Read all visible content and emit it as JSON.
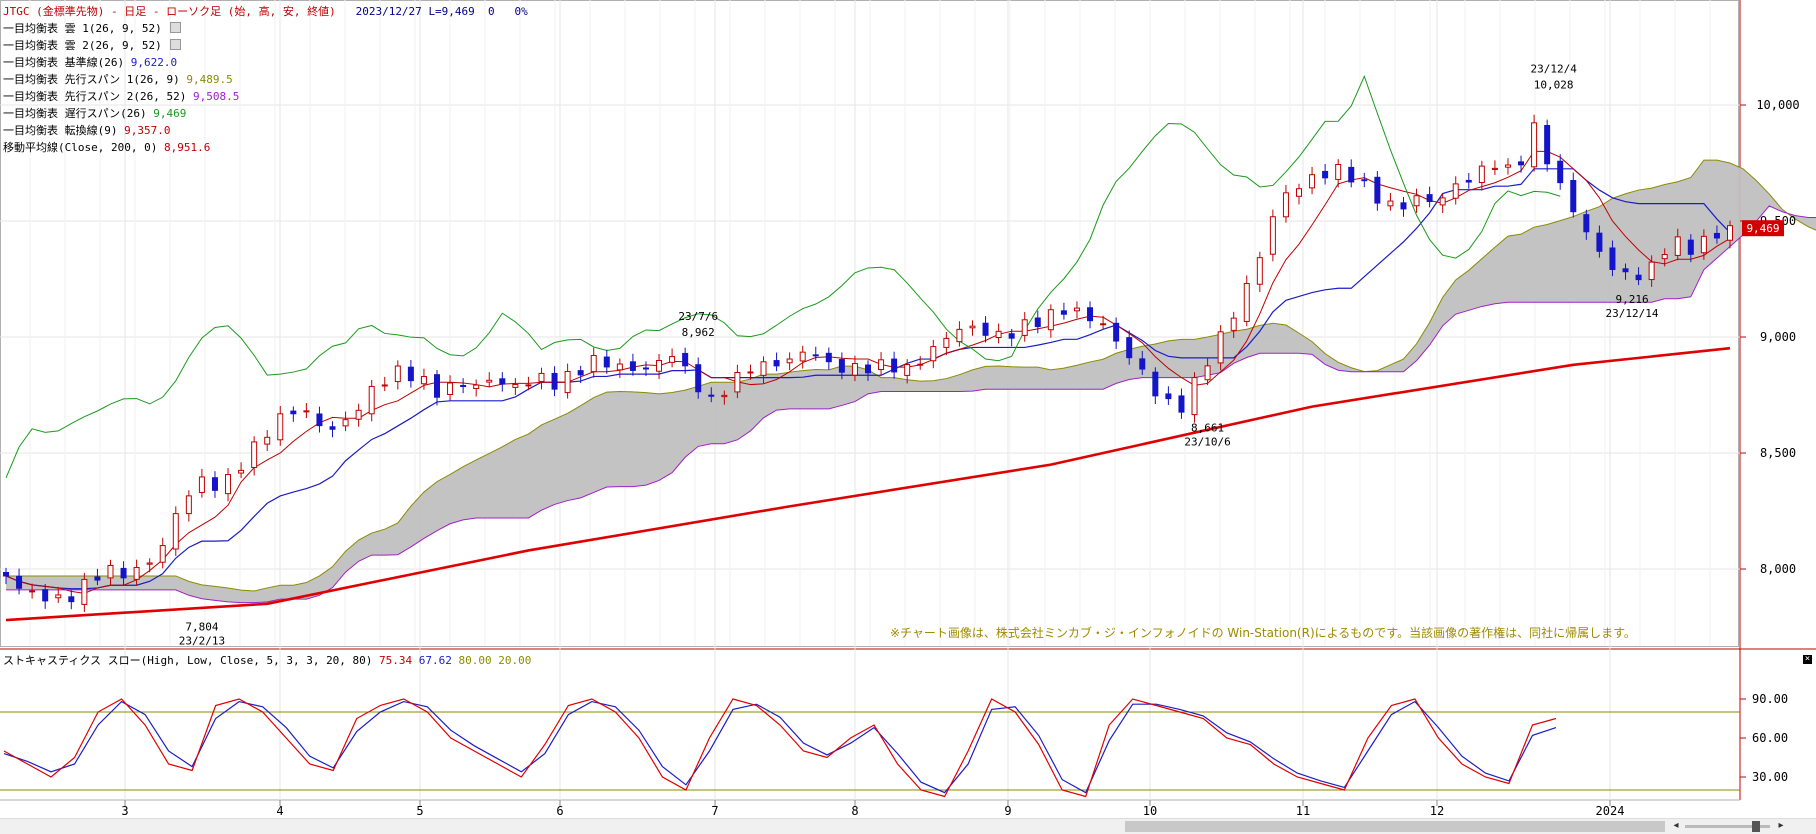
{
  "header": {
    "title": "JTGC (金標準先物) - 日足 - ローソク足 (始, 高, 安, 終値)",
    "date": "2023/12/27",
    "last": "L=9,469",
    "change": "0",
    "pct": "0%"
  },
  "legend": [
    {
      "label": "一目均衡表 雲 1(26, 9, 52)",
      "value": "",
      "chip": true,
      "color": "#000000"
    },
    {
      "label": "一目均衡表 雲 2(26, 9, 52)",
      "value": "",
      "chip": true,
      "color": "#000000"
    },
    {
      "label": "一目均衡表 基準線(26)",
      "value": "9,622.0",
      "chip": false,
      "color": "#1c1cc8"
    },
    {
      "label": "一目均衡表 先行スパン 1(26, 9)",
      "value": "9,489.5",
      "chip": false,
      "color": "#8b8b00"
    },
    {
      "label": "一目均衡表 先行スパン 2(26, 52)",
      "value": "9,508.5",
      "chip": false,
      "color": "#a020c8"
    },
    {
      "label": "一目均衡表 遅行スパン(26)",
      "value": "9,469",
      "chip": false,
      "color": "#1a9a1a"
    },
    {
      "label": "一目均衡表 転換線(9)",
      "value": "9,357.0",
      "chip": false,
      "color": "#c00000"
    },
    {
      "label": "移動平均線(Close, 200, 0)",
      "value": "8,951.6",
      "chip": false,
      "color": "#c00000"
    }
  ],
  "oscillator": {
    "title": "ストキャスティクス スロー(High, Low, Close, 5, 3, 3, 20, 80)",
    "k": "75.34",
    "d": "67.62",
    "upper": "80.00",
    "lower": "20.00",
    "yticks": [
      "90.00",
      "60.00",
      "30.00"
    ]
  },
  "note": "※チャート画像は、株式会社ミンカブ・ジ・インフォノイドの Win-Station(R)によるものです。当該画像の著作権は、同社に帰属します。",
  "price_badge": "9,469",
  "colors": {
    "up": "#c00000",
    "down": "#1414c8",
    "cloud": "#c0c0c0",
    "tenkan": "#c00000",
    "kijun": "#1c1cc8",
    "chikou": "#1a9a1a",
    "spanA": "#8b8b00",
    "spanB": "#a020c8",
    "ma200": "#e00000",
    "stochK": "#e00000",
    "stochD": "#1c1cc8",
    "osc_levels": "#8b8b00"
  },
  "chart_data": [
    {
      "type": "candlestick",
      "title": "JTGC (金標準先物) - 日足",
      "x_labels": [
        "3",
        "4",
        "5",
        "6",
        "7",
        "8",
        "9",
        "10",
        "11",
        "12",
        "2024"
      ],
      "y_ticks": [
        "10,000",
        "9,500",
        "9,000",
        "8,500",
        "8,000"
      ],
      "ylim": [
        7700,
        10500
      ],
      "annotations": [
        {
          "date": "23/2/13",
          "value": "7,804",
          "kind": "low"
        },
        {
          "date": "23/7/6",
          "value": "8,962",
          "kind": "high"
        },
        {
          "date": "23/10/6",
          "value": "8,661",
          "kind": "low"
        },
        {
          "date": "23/12/4",
          "value": "10,028",
          "kind": "high"
        },
        {
          "date": "23/12/14",
          "value": "9,216",
          "kind": "low"
        }
      ],
      "close_path": [
        [
          0,
          7970
        ],
        [
          3,
          7900
        ],
        [
          6,
          7880
        ],
        [
          9,
          7860
        ],
        [
          12,
          7930
        ],
        [
          15,
          8000
        ],
        [
          18,
          7980
        ],
        [
          21,
          8000
        ],
        [
          24,
          8100
        ],
        [
          27,
          8300
        ],
        [
          30,
          8380
        ],
        [
          33,
          8350
        ],
        [
          36,
          8450
        ],
        [
          39,
          8560
        ],
        [
          42,
          8650
        ],
        [
          45,
          8700
        ],
        [
          48,
          8620
        ],
        [
          51,
          8600
        ],
        [
          54,
          8700
        ],
        [
          57,
          8800
        ],
        [
          60,
          8850
        ],
        [
          63,
          8830
        ],
        [
          66,
          8760
        ],
        [
          69,
          8800
        ],
        [
          72,
          8790
        ],
        [
          75,
          8820
        ],
        [
          78,
          8780
        ],
        [
          81,
          8830
        ],
        [
          84,
          8800
        ],
        [
          87,
          8840
        ],
        [
          90,
          8900
        ],
        [
          93,
          8880
        ],
        [
          96,
          8860
        ],
        [
          99,
          8870
        ],
        [
          102,
          8930
        ],
        [
          105,
          8820
        ],
        [
          108,
          8720
        ],
        [
          111,
          8800
        ],
        [
          114,
          8870
        ],
        [
          117,
          8880
        ],
        [
          120,
          8900
        ],
        [
          123,
          8950
        ],
        [
          126,
          8880
        ],
        [
          129,
          8860
        ],
        [
          132,
          8870
        ],
        [
          135,
          8880
        ],
        [
          138,
          8860
        ],
        [
          141,
          8920
        ],
        [
          144,
          9000
        ],
        [
          147,
          9050
        ],
        [
          150,
          9020
        ],
        [
          153,
          9000
        ],
        [
          156,
          9050
        ],
        [
          159,
          9080
        ],
        [
          162,
          9120
        ],
        [
          165,
          9100
        ],
        [
          168,
          9050
        ],
        [
          171,
          8950
        ],
        [
          174,
          8850
        ],
        [
          177,
          8720
        ],
        [
          180,
          8700
        ],
        [
          183,
          8850
        ],
        [
          186,
          9000
        ],
        [
          189,
          9150
        ],
        [
          192,
          9350
        ],
        [
          195,
          9600
        ],
        [
          198,
          9650
        ],
        [
          201,
          9700
        ],
        [
          204,
          9720
        ],
        [
          207,
          9680
        ],
        [
          210,
          9600
        ],
        [
          213,
          9550
        ],
        [
          216,
          9600
        ],
        [
          219,
          9580
        ],
        [
          222,
          9650
        ],
        [
          225,
          9700
        ],
        [
          228,
          9750
        ],
        [
          231,
          9700
        ],
        [
          234,
          9900
        ],
        [
          237,
          9700
        ],
        [
          240,
          9550
        ],
        [
          243,
          9400
        ],
        [
          246,
          9300
        ],
        [
          249,
          9250
        ],
        [
          252,
          9300
        ],
        [
          255,
          9420
        ],
        [
          258,
          9380
        ],
        [
          261,
          9430
        ],
        [
          264,
          9469
        ]
      ],
      "ma200_path": [
        [
          0,
          7780
        ],
        [
          40,
          7850
        ],
        [
          80,
          8080
        ],
        [
          120,
          8270
        ],
        [
          160,
          8450
        ],
        [
          200,
          8700
        ],
        [
          240,
          8880
        ],
        [
          264,
          8951.6
        ]
      ]
    },
    {
      "type": "line",
      "title": "ストキャスティクス スロー",
      "ylim": [
        0,
        100
      ],
      "levels": [
        80,
        20
      ],
      "series": [
        {
          "name": "%K",
          "values": [
            50,
            40,
            30,
            45,
            80,
            90,
            70,
            40,
            35,
            85,
            90,
            80,
            60,
            40,
            35,
            75,
            85,
            90,
            80,
            60,
            50,
            40,
            30,
            55,
            85,
            90,
            80,
            60,
            30,
            20,
            60,
            90,
            85,
            70,
            50,
            45,
            60,
            70,
            40,
            20,
            15,
            50,
            90,
            80,
            55,
            20,
            15,
            70,
            90,
            85,
            80,
            75,
            60,
            55,
            40,
            30,
            25,
            20,
            60,
            85,
            90,
            60,
            40,
            30,
            25,
            70,
            75
          ]
        },
        {
          "name": "%D",
          "values": [
            48,
            42,
            34,
            40,
            70,
            88,
            78,
            50,
            38,
            75,
            88,
            84,
            68,
            46,
            37,
            65,
            80,
            88,
            84,
            66,
            54,
            44,
            34,
            48,
            78,
            88,
            84,
            66,
            38,
            24,
            50,
            82,
            86,
            76,
            56,
            47,
            56,
            68,
            48,
            26,
            18,
            40,
            82,
            84,
            62,
            28,
            18,
            58,
            86,
            86,
            82,
            77,
            64,
            57,
            44,
            33,
            27,
            22,
            50,
            78,
            88,
            68,
            46,
            33,
            27,
            62,
            68
          ]
        }
      ]
    }
  ]
}
